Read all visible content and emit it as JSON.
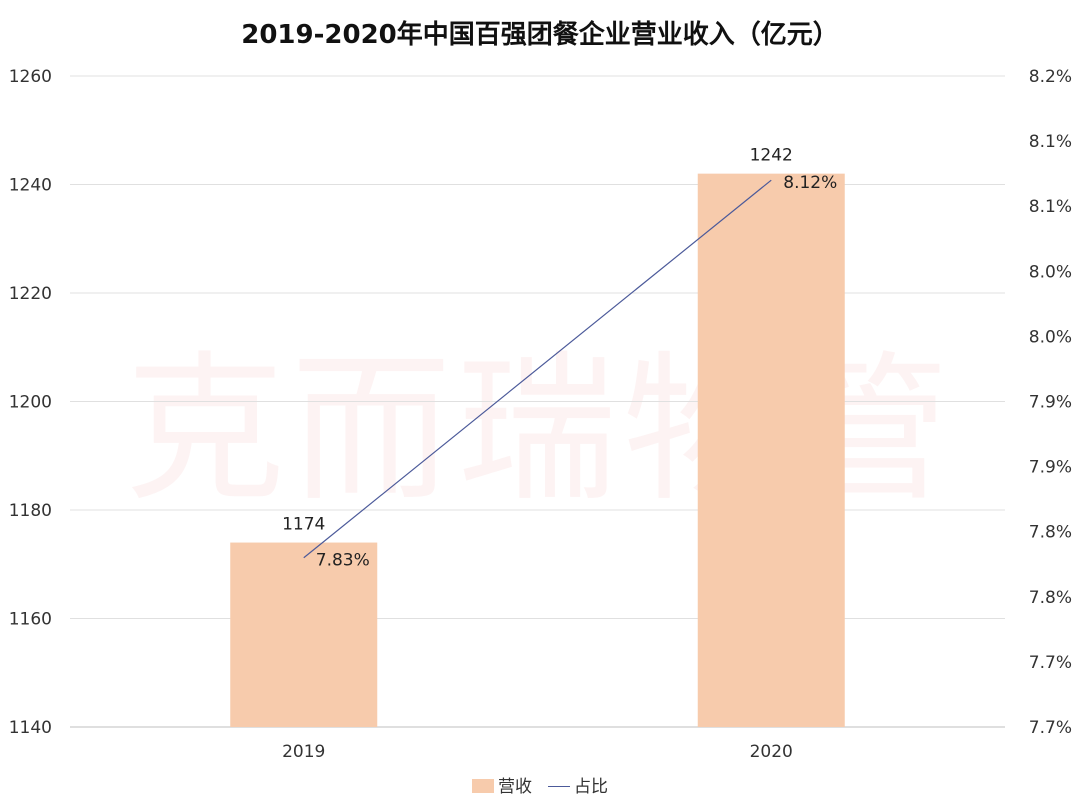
{
  "chart_data": {
    "type": "bar",
    "title": "2019-2020年中国百强团餐企业营业收入（亿元）",
    "categories": [
      "2019",
      "2020"
    ],
    "series": [
      {
        "name": "营收",
        "type": "bar",
        "axis": "left",
        "values": [
          1174,
          1242
        ],
        "labels": [
          "1174",
          "1242"
        ],
        "color": "#f7cbac"
      },
      {
        "name": "占比",
        "type": "line",
        "axis": "right",
        "values": [
          7.83,
          8.12
        ],
        "labels": [
          "7.83%",
          "8.12%"
        ],
        "color": "#4c5a9a"
      }
    ],
    "left_axis": {
      "ylim": [
        1140,
        1260
      ],
      "ticks": [
        "1140",
        "1160",
        "1180",
        "1200",
        "1220",
        "1240",
        "1260"
      ]
    },
    "right_axis": {
      "ylim": [
        7.7,
        8.2
      ],
      "ticks": [
        "7.7%",
        "7.7%",
        "7.8%",
        "7.8%",
        "7.9%",
        "7.9%",
        "8.0%",
        "8.0%",
        "8.1%",
        "8.1%",
        "8.2%"
      ]
    },
    "grid": true,
    "legend_position": "bottom"
  },
  "watermark": "克而瑞物管"
}
